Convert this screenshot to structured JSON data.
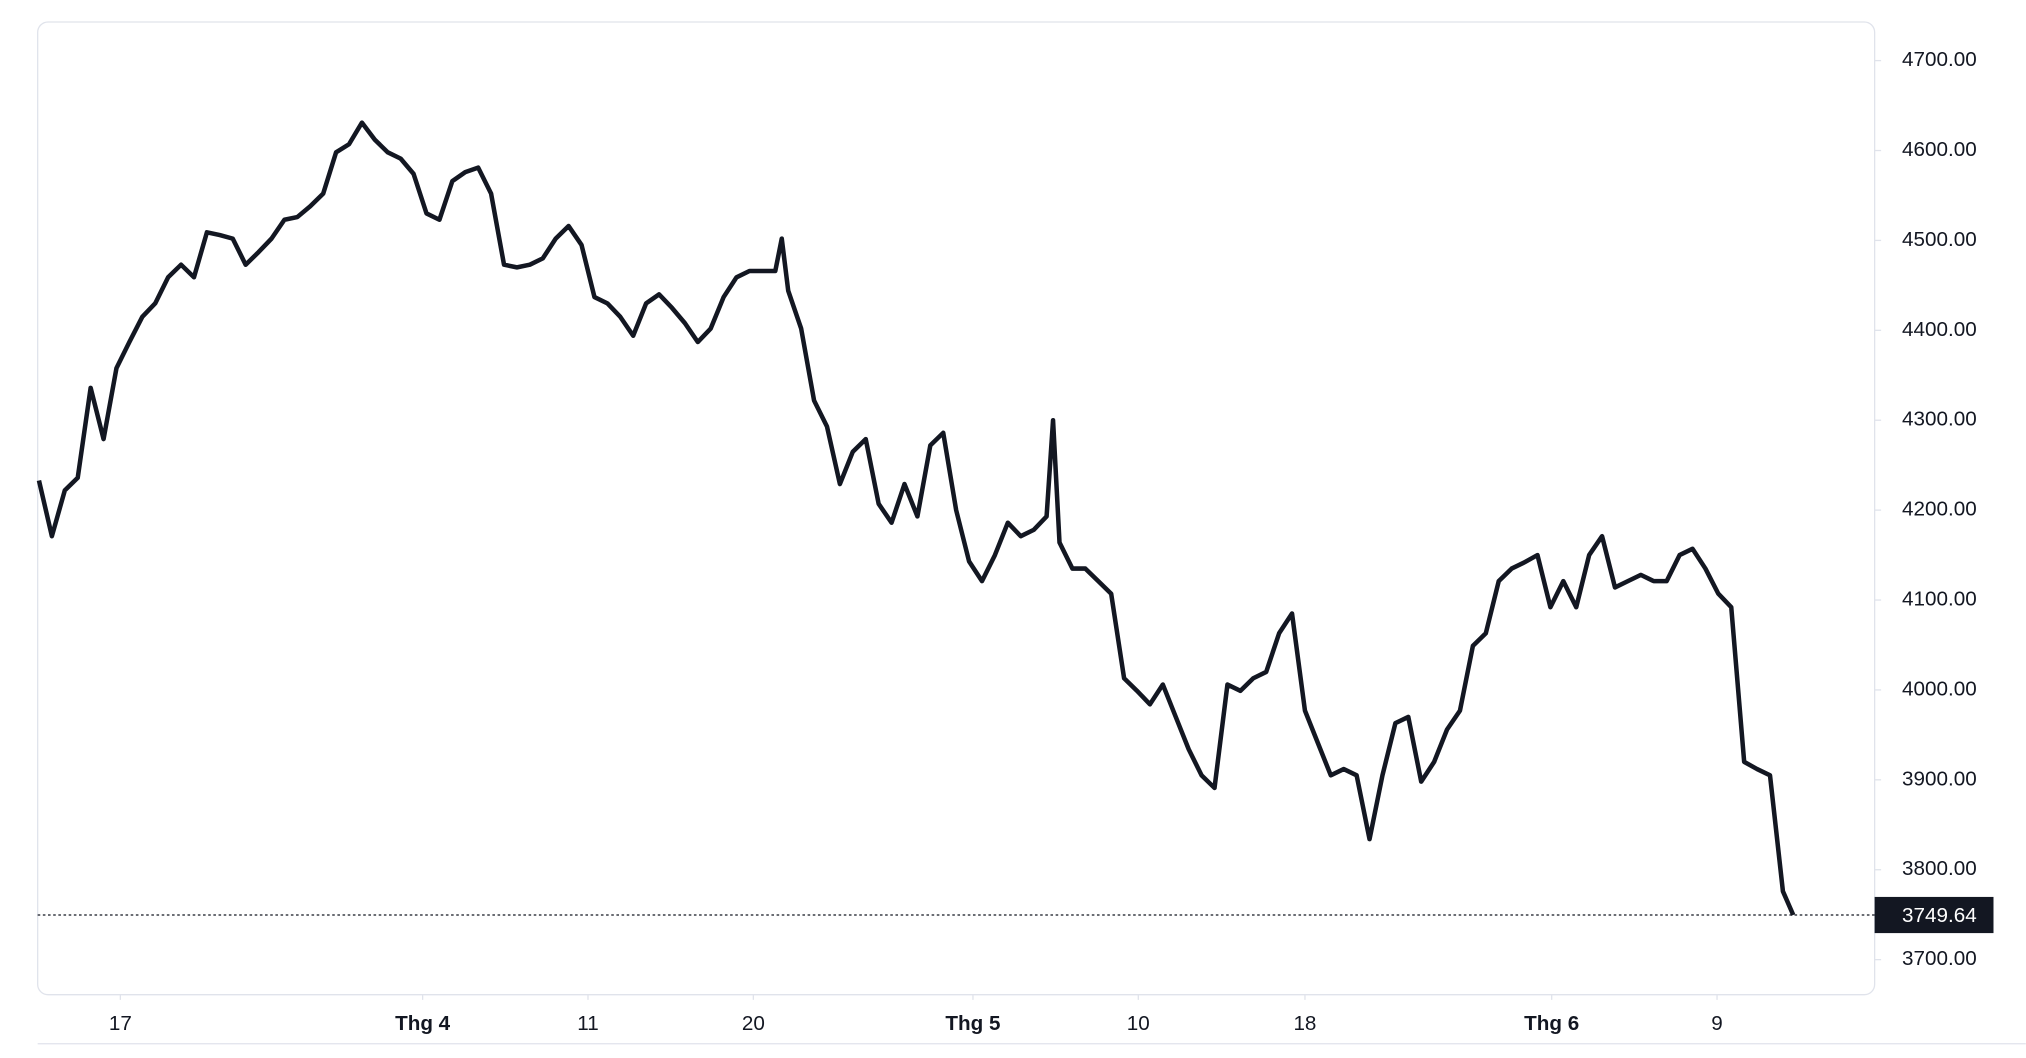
{
  "chart_data": {
    "type": "line",
    "x": [
      0,
      1,
      2,
      3,
      4,
      5,
      6,
      7,
      8,
      9,
      10,
      11,
      12,
      13,
      14,
      15,
      16,
      17,
      18,
      19,
      20,
      21,
      22,
      23,
      24,
      25,
      26,
      27,
      28,
      29,
      30,
      31,
      32,
      33,
      34,
      35,
      36,
      37,
      38,
      39,
      40,
      41,
      42,
      43,
      44,
      45,
      46,
      47,
      48,
      49,
      50,
      51,
      52,
      53,
      54,
      55,
      56,
      57,
      57.5,
      58,
      59,
      60,
      61,
      62,
      63,
      64,
      65,
      66,
      67,
      68,
      69,
      70,
      71,
      72,
      73,
      74,
      75,
      76,
      77,
      78,
      78.5,
      79,
      80,
      81,
      82,
      83,
      84,
      85,
      86,
      87,
      88,
      89,
      90,
      91,
      92,
      93,
      94,
      95,
      96,
      97,
      98,
      99,
      100,
      101,
      102,
      103,
      104,
      105,
      106,
      107,
      108,
      109,
      110,
      111,
      112,
      113,
      114,
      115,
      116,
      117,
      118,
      119,
      120,
      121,
      122,
      123,
      124,
      125,
      126,
      127,
      128,
      129,
      130,
      131,
      132,
      133,
      134,
      135,
      135.8
    ],
    "series": [
      {
        "color": "#131722",
        "values": [
          4233,
          4171,
          4222,
          4236,
          4336,
          4279,
          4358,
          4387,
          4415,
          4430,
          4459,
          4473,
          4459,
          4509,
          4506,
          4502,
          4473,
          4487,
          4502,
          4523,
          4526,
          4538,
          4552,
          4598,
          4607,
          4631,
          4612,
          4598,
          4591,
          4574,
          4530,
          4523,
          4566,
          4576,
          4581,
          4552,
          4473,
          4470,
          4473,
          4480,
          4502,
          4516,
          4495,
          4437,
          4430,
          4415,
          4394,
          4430,
          4440,
          4425,
          4408,
          4387,
          4402,
          4437,
          4459,
          4466,
          4466,
          4466,
          4502,
          4444,
          4402,
          4322,
          4293,
          4229,
          4265,
          4279,
          4207,
          4186,
          4229,
          4193,
          4272,
          4286,
          4200,
          4143,
          4121,
          4150,
          4186,
          4171,
          4178,
          4193,
          4300,
          4164,
          4135,
          4135,
          4121,
          4107,
          4013,
          3999,
          3984,
          4006,
          3970,
          3934,
          3905,
          3891,
          4006,
          3999,
          4013,
          4020,
          4063,
          4085,
          3977,
          3941,
          3905,
          3912,
          3905,
          3834,
          3905,
          3963,
          3970,
          3898,
          3920,
          3956,
          3977,
          4049,
          4063,
          4121,
          4135,
          4142,
          4150,
          4092,
          4121,
          4092,
          4150,
          4171,
          4114,
          4121,
          4128,
          4121,
          4121,
          4150,
          4157,
          4135,
          4107,
          4092,
          3920,
          3912,
          3905,
          3776,
          3749.64
        ]
      }
    ],
    "last_value": 3749.64,
    "xlim": [
      -0.1,
      142.1
    ],
    "xticks": [
      {
        "value": 6.3,
        "label": "17"
      },
      {
        "value": 29.7,
        "label": "Thg 4"
      },
      {
        "value": 42.5,
        "label": "11"
      },
      {
        "value": 55.3,
        "label": "20"
      },
      {
        "value": 72.3,
        "label": "Thg 5"
      },
      {
        "value": 85.1,
        "label": "10"
      },
      {
        "value": 98,
        "label": "18"
      },
      {
        "value": 117.1,
        "label": "Thg 6"
      },
      {
        "value": 129.9,
        "label": "9"
      }
    ],
    "ylim": [
      3661,
      4743
    ],
    "yticks": [
      {
        "value": 3700,
        "label": "3700.00"
      },
      {
        "value": 3800,
        "label": "3800.00"
      },
      {
        "value": 3900,
        "label": "3900.00"
      },
      {
        "value": 4000,
        "label": "4000.00"
      },
      {
        "value": 4100,
        "label": "4100.00"
      },
      {
        "value": 4200,
        "label": "4200.00"
      },
      {
        "value": 4300,
        "label": "4300.00"
      },
      {
        "value": 4400,
        "label": "4400.00"
      },
      {
        "value": 4500,
        "label": "4500.00"
      },
      {
        "value": 4600,
        "label": "4600.00"
      },
      {
        "value": 4700,
        "label": "4700.00"
      }
    ]
  }
}
